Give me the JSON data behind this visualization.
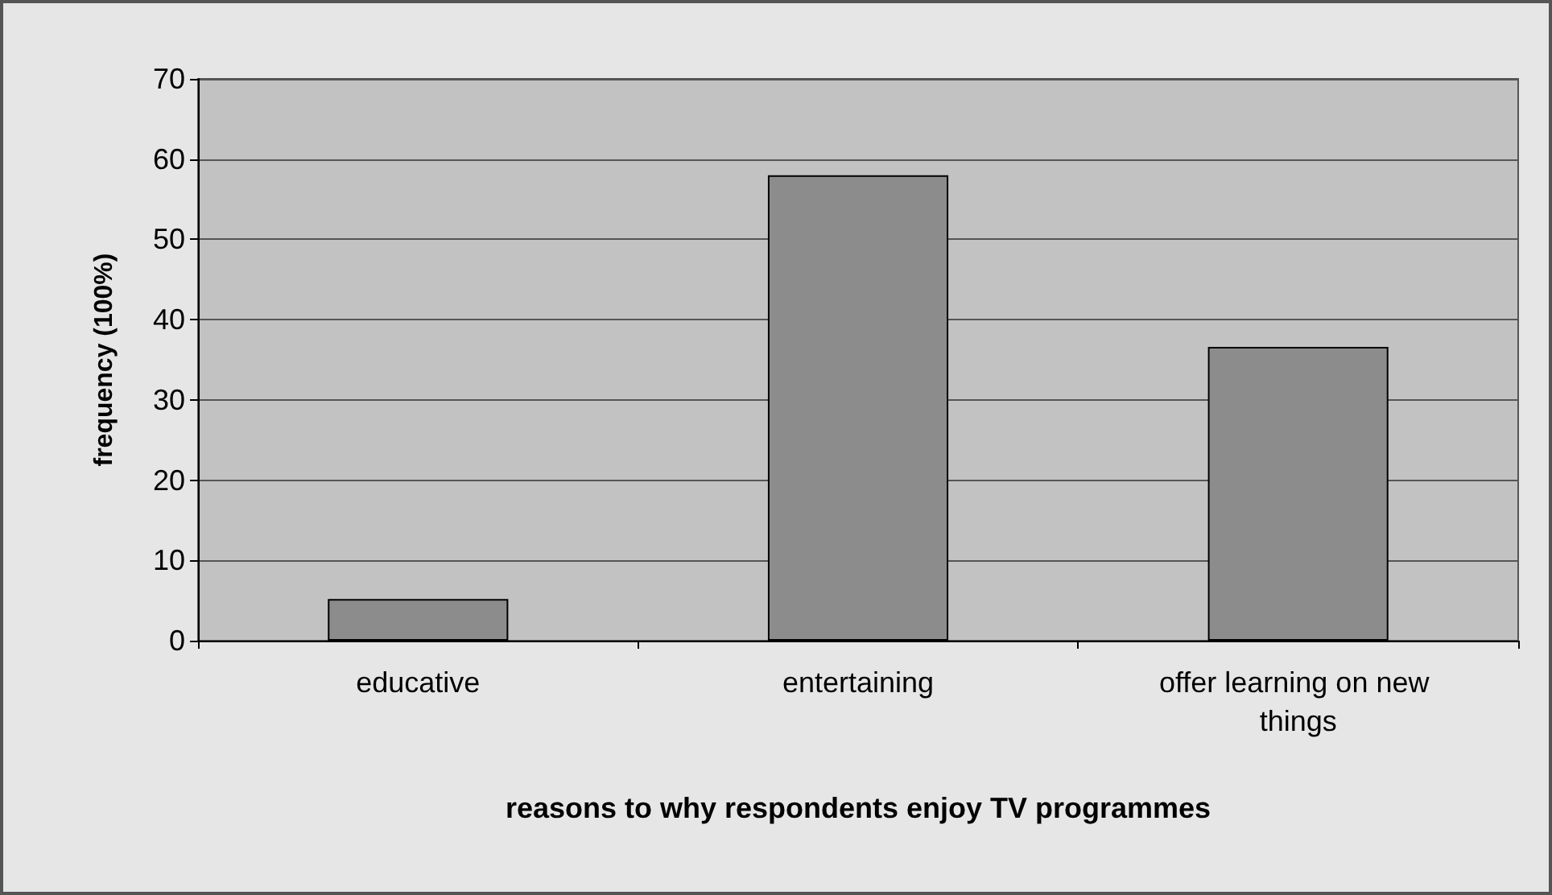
{
  "chart_data": {
    "type": "bar",
    "xlabel": "reasons to why respondents enjoy TV programmes",
    "ylabel": "frequency (100%)",
    "categories": [
      "educative",
      "entertaining",
      "offer learning on new things"
    ],
    "values": [
      5.2,
      58,
      36.6
    ],
    "color": "#8c8c8c",
    "ylim": [
      0,
      70
    ],
    "yticks": [
      0,
      10,
      20,
      30,
      40,
      50,
      60,
      70
    ],
    "grid": "y"
  }
}
